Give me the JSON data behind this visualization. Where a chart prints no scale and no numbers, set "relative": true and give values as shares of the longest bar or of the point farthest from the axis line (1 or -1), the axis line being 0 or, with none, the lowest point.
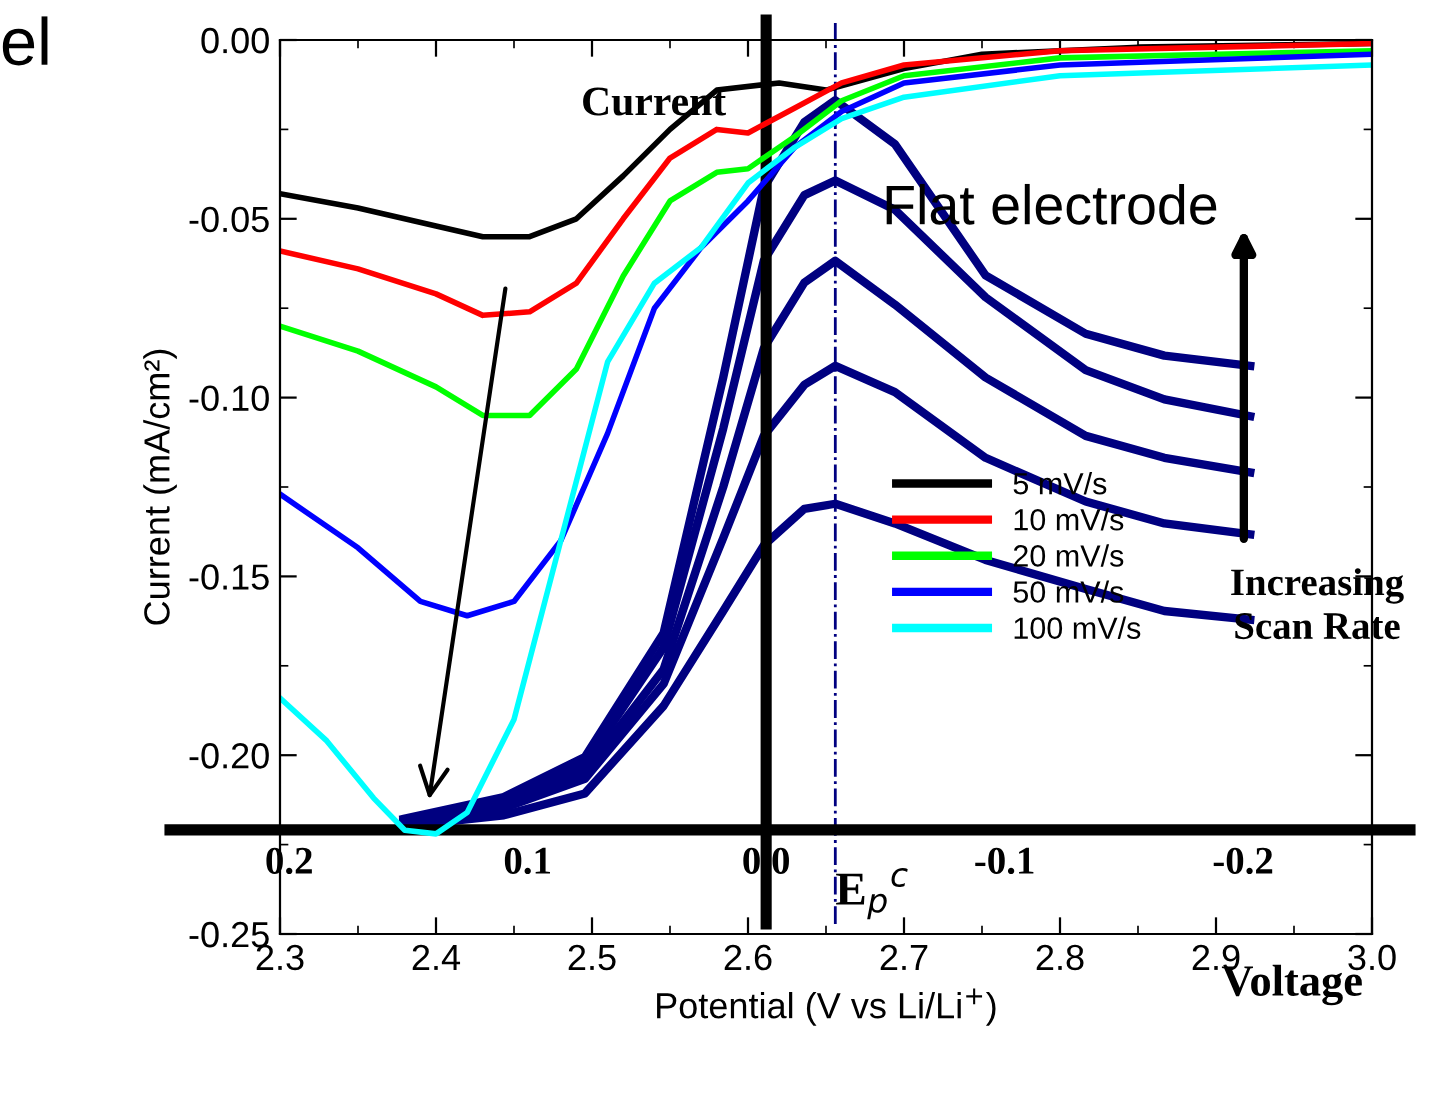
{
  "chart_data": [
    {
      "type": "line",
      "xlabel": "Potential (V vs Li/Li$^{+}$)",
      "ylabel": "Current (mA/cm²)",
      "xlim": [
        2.3,
        3.0
      ],
      "ylim": [
        -0.25,
        0.0
      ],
      "xticks": [
        {
          "value": 2.3,
          "label": "2.3"
        },
        {
          "value": 2.4,
          "label": "2.4"
        },
        {
          "value": 2.5,
          "label": "2.5"
        },
        {
          "value": 2.6,
          "label": "2.6"
        },
        {
          "value": 2.7,
          "label": "2.7"
        },
        {
          "value": 2.8,
          "label": "2.8"
        },
        {
          "value": 2.9,
          "label": "2.9"
        },
        {
          "value": 3.0,
          "label": "3.0"
        }
      ],
      "yticks": [
        {
          "value": 0.0,
          "label": "0.00"
        },
        {
          "value": -0.05,
          "label": "-0.05"
        },
        {
          "value": -0.1,
          "label": "-0.10"
        },
        {
          "value": -0.15,
          "label": "-0.15"
        },
        {
          "value": -0.2,
          "label": "-0.20"
        },
        {
          "value": -0.25,
          "label": "-0.25"
        }
      ],
      "grid": false,
      "legend": "center right",
      "annotations": [
        "el"
      ],
      "series": [
        {
          "name": "5 mV/s",
          "color": "#000000",
          "x": [
            2.3,
            2.35,
            2.4,
            2.43,
            2.46,
            2.49,
            2.52,
            2.55,
            2.58,
            2.62,
            2.65,
            2.7,
            2.75,
            2.85,
            3.0
          ],
          "values": [
            -0.043,
            -0.047,
            -0.052,
            -0.055,
            -0.055,
            -0.05,
            -0.038,
            -0.025,
            -0.014,
            -0.012,
            -0.014,
            -0.008,
            -0.004,
            -0.002,
            -0.001
          ]
        },
        {
          "name": "10 mV/s",
          "color": "#ff0000",
          "x": [
            2.3,
            2.35,
            2.4,
            2.43,
            2.46,
            2.49,
            2.52,
            2.55,
            2.58,
            2.6,
            2.63,
            2.66,
            2.7,
            2.8,
            3.0
          ],
          "values": [
            -0.059,
            -0.064,
            -0.071,
            -0.077,
            -0.076,
            -0.068,
            -0.05,
            -0.033,
            -0.025,
            -0.026,
            -0.019,
            -0.012,
            -0.007,
            -0.003,
            -0.001
          ]
        },
        {
          "name": "20 mV/s",
          "color": "#00ff00",
          "x": [
            2.3,
            2.35,
            2.4,
            2.43,
            2.46,
            2.49,
            2.52,
            2.55,
            2.58,
            2.6,
            2.63,
            2.66,
            2.7,
            2.8,
            3.0
          ],
          "values": [
            -0.08,
            -0.087,
            -0.097,
            -0.105,
            -0.105,
            -0.092,
            -0.066,
            -0.045,
            -0.037,
            -0.036,
            -0.027,
            -0.017,
            -0.01,
            -0.005,
            -0.003
          ]
        },
        {
          "name": "50 mV/s",
          "color": "#0000ff",
          "x": [
            2.3,
            2.35,
            2.39,
            2.42,
            2.45,
            2.48,
            2.51,
            2.54,
            2.57,
            2.6,
            2.63,
            2.66,
            2.7,
            2.8,
            3.0
          ],
          "values": [
            -0.127,
            -0.142,
            -0.157,
            -0.161,
            -0.157,
            -0.14,
            -0.11,
            -0.075,
            -0.058,
            -0.045,
            -0.03,
            -0.02,
            -0.012,
            -0.007,
            -0.004
          ]
        },
        {
          "name": "100 mV/s",
          "color": "#00ffff",
          "x": [
            2.3,
            2.33,
            2.36,
            2.38,
            2.4,
            2.42,
            2.45,
            2.48,
            2.51,
            2.54,
            2.57,
            2.6,
            2.63,
            2.66,
            2.7,
            2.8,
            3.0
          ],
          "values": [
            -0.184,
            -0.196,
            -0.212,
            -0.221,
            -0.222,
            -0.216,
            -0.19,
            -0.14,
            -0.09,
            -0.068,
            -0.058,
            -0.04,
            -0.03,
            -0.022,
            -0.016,
            -0.01,
            -0.007
          ]
        }
      ]
    },
    {
      "type": "line",
      "relative": true,
      "xlabel": "Voltage",
      "ylabel": "Current",
      "xlim": [
        0.25,
        -0.27
      ],
      "xticks": [
        {
          "value": 0.2,
          "label": "0.2"
        },
        {
          "value": 0.1,
          "label": "0.1"
        },
        {
          "value": 0.0,
          "label": "0.0"
        },
        {
          "value": -0.1,
          "label": "-0.1"
        },
        {
          "value": -0.2,
          "label": "-0.2"
        }
      ],
      "ref_lines": [
        {
          "axis": "x",
          "value": -0.029,
          "label": "E$_{p}$$^{c}$",
          "color": "#000080",
          "line_style": "dashdot"
        }
      ],
      "annotations": [
        "Flat electrode",
        "Increasing\nScan Rate"
      ],
      "x": [
        0.152,
        0.11,
        0.076,
        0.043,
        0.018,
        0.001,
        -0.016,
        -0.029,
        -0.054,
        -0.092,
        -0.134,
        -0.167,
        -0.203
      ],
      "series": [
        {
          "color": "#000080",
          "values": [
            0.005,
            0.02,
            0.05,
            0.17,
            0.3,
            0.39,
            0.44,
            0.447,
            0.42,
            0.37,
            0.33,
            0.3,
            0.288
          ]
        },
        {
          "color": "#000080",
          "values": [
            0.008,
            0.03,
            0.07,
            0.2,
            0.4,
            0.54,
            0.61,
            0.636,
            0.6,
            0.51,
            0.45,
            0.42,
            0.405
          ]
        },
        {
          "color": "#000080",
          "values": [
            0.01,
            0.035,
            0.08,
            0.22,
            0.47,
            0.66,
            0.75,
            0.78,
            0.72,
            0.62,
            0.54,
            0.51,
            0.49
          ]
        },
        {
          "color": "#000080",
          "values": [
            0.012,
            0.04,
            0.09,
            0.25,
            0.55,
            0.78,
            0.87,
            0.89,
            0.85,
            0.73,
            0.63,
            0.59,
            0.567
          ]
        },
        {
          "color": "#000080",
          "values": [
            0.015,
            0.045,
            0.1,
            0.27,
            0.62,
            0.88,
            0.97,
            1.0,
            0.94,
            0.76,
            0.68,
            0.65,
            0.636
          ]
        }
      ]
    }
  ]
}
